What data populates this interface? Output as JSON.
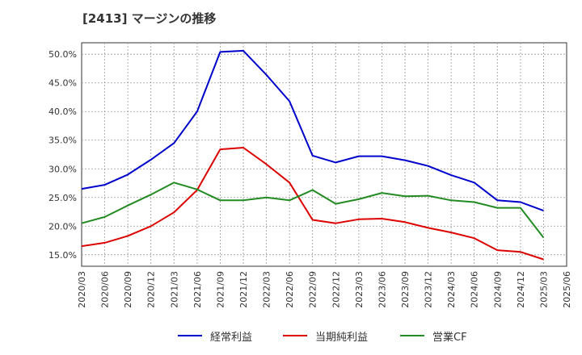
{
  "title": "[2413]  マージンの推移",
  "chart_data": {
    "type": "line",
    "title": "[2413]  マージンの推移",
    "x": [
      "2020/03",
      "2020/06",
      "2020/09",
      "2020/12",
      "2021/03",
      "2021/06",
      "2021/09",
      "2021/12",
      "2022/03",
      "2022/06",
      "2022/09",
      "2022/12",
      "2023/03",
      "2023/06",
      "2023/09",
      "2023/12",
      "2024/03",
      "2024/06",
      "2024/09",
      "2024/12",
      "2025/03",
      "2025/06"
    ],
    "ylim": [
      13.0,
      52.0
    ],
    "yticks": [
      15.0,
      20.0,
      25.0,
      30.0,
      35.0,
      40.0,
      45.0,
      50.0
    ],
    "ytick_labels": [
      "15.0%",
      "20.0%",
      "25.0%",
      "30.0%",
      "35.0%",
      "40.0%",
      "45.0%",
      "50.0%"
    ],
    "grid": true,
    "legend_position": "bottom",
    "series": [
      {
        "name": "経常利益",
        "color": "#0000cc",
        "values": [
          26.5,
          27.2,
          29.0,
          31.6,
          34.5,
          40.0,
          50.4,
          50.6,
          46.4,
          41.8,
          32.3,
          31.1,
          32.2,
          32.2,
          31.5,
          30.5,
          28.9,
          27.6,
          24.5,
          24.2,
          22.7,
          null
        ]
      },
      {
        "name": "当期純利益",
        "color": "#dd0000",
        "values": [
          16.5,
          17.1,
          18.3,
          20.0,
          22.4,
          26.3,
          33.4,
          33.7,
          30.8,
          27.6,
          21.1,
          20.5,
          21.2,
          21.3,
          20.7,
          19.7,
          18.9,
          17.9,
          15.8,
          15.5,
          14.2,
          null
        ]
      },
      {
        "name": "営業CF",
        "color": "#228b22",
        "values": [
          20.5,
          21.6,
          23.6,
          25.5,
          27.6,
          26.4,
          24.5,
          24.5,
          25.0,
          24.5,
          26.3,
          23.9,
          24.7,
          25.8,
          25.2,
          25.3,
          24.5,
          24.2,
          23.2,
          23.2,
          18.0,
          null
        ]
      }
    ]
  }
}
